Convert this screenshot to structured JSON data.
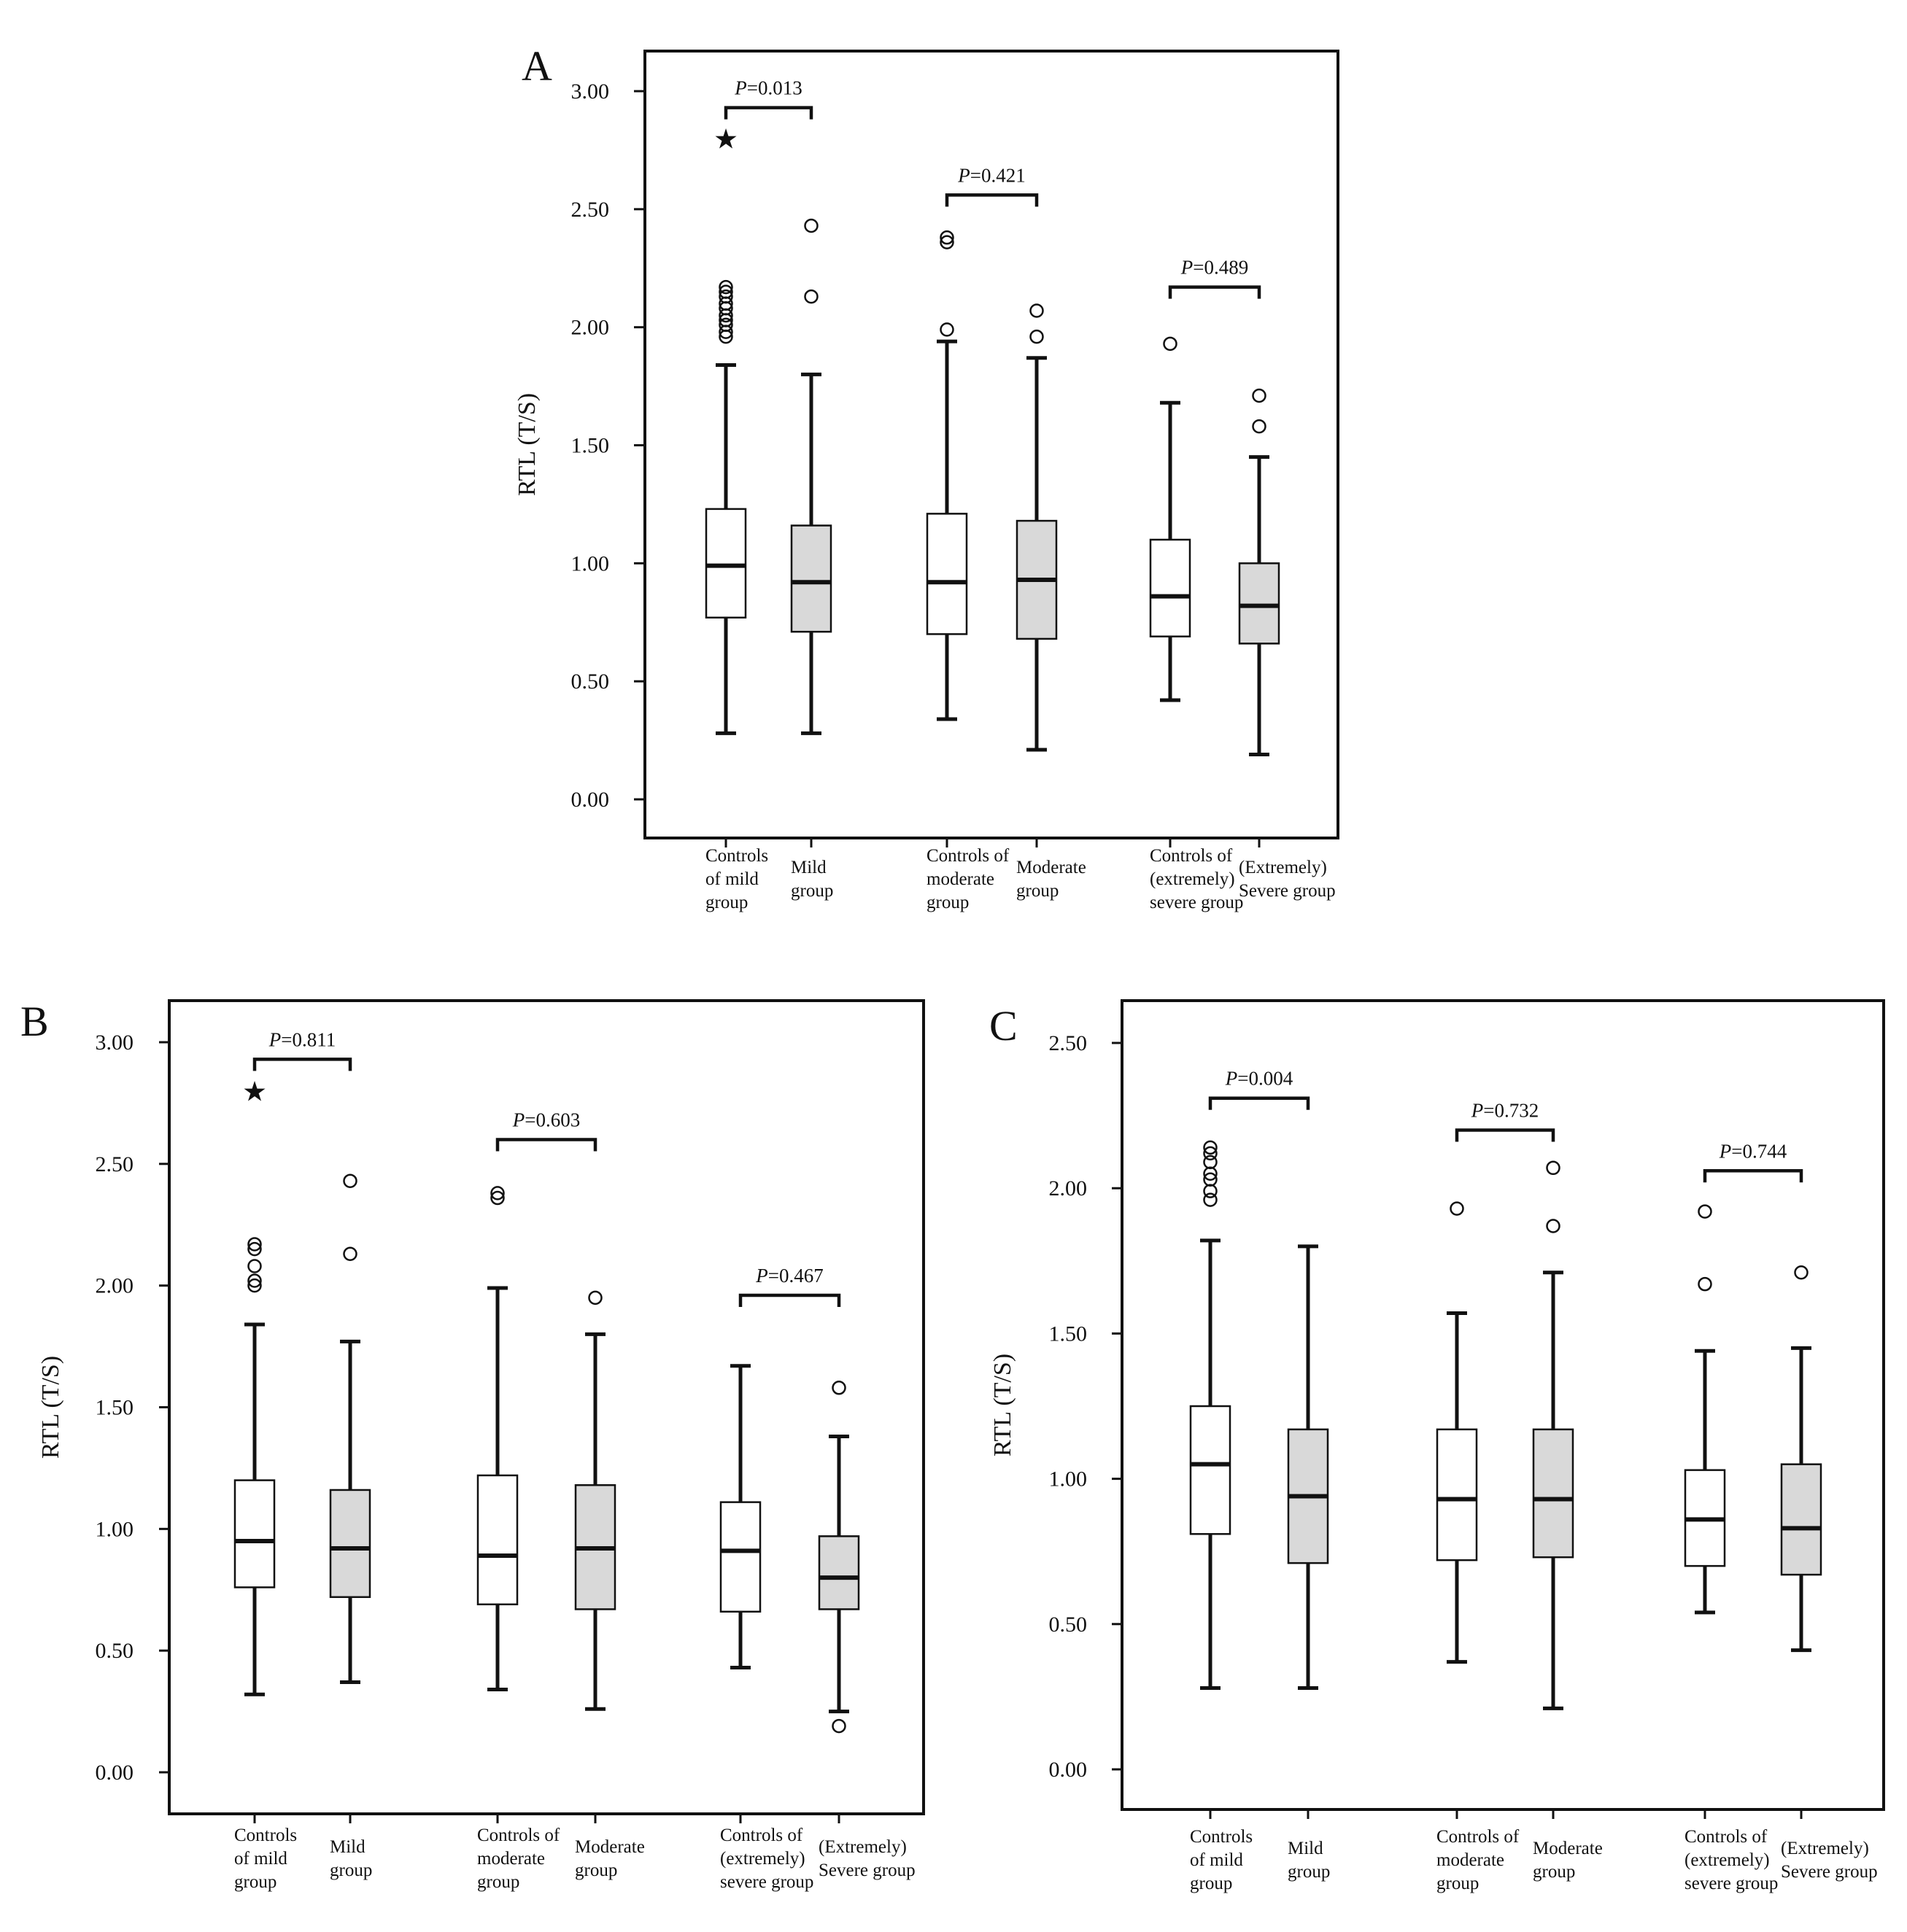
{
  "colors": {
    "control_fill": "#ffffff",
    "case_fill": "#d9d9d9",
    "stroke": "#111111",
    "background": "#ffffff"
  },
  "chart_data": [
    {
      "type": "boxplot",
      "panel": "A",
      "ylabel": "RTL (T/S)",
      "ylim": [
        0,
        3
      ],
      "yticks": [
        "0.00",
        "0.50",
        "1.00",
        "1.50",
        "2.00",
        "2.50",
        "3.00"
      ],
      "grid": false,
      "categories": [
        [
          "Controls",
          "of mild",
          "group"
        ],
        [
          "Mild",
          "group"
        ],
        [
          "Controls of",
          "moderate",
          "group"
        ],
        [
          "Moderate",
          "group"
        ],
        [
          "Controls of",
          "(extremely)",
          "severe group"
        ],
        [
          "(Extremely)",
          "Severe group"
        ]
      ],
      "boxes": [
        {
          "min": 0.28,
          "q1": 0.77,
          "median": 0.99,
          "q3": 1.23,
          "max": 1.84,
          "outliers": [
            1.96,
            1.98,
            2.01,
            2.03,
            2.05,
            2.08,
            2.1,
            2.13,
            2.15,
            2.17
          ],
          "extremes": [
            2.8
          ],
          "group": "control"
        },
        {
          "min": 0.28,
          "q1": 0.71,
          "median": 0.92,
          "q3": 1.16,
          "max": 1.8,
          "outliers": [
            2.13,
            2.43
          ],
          "extremes": [],
          "group": "case"
        },
        {
          "min": 0.34,
          "q1": 0.7,
          "median": 0.92,
          "q3": 1.21,
          "max": 1.94,
          "outliers": [
            1.99,
            2.36,
            2.38
          ],
          "extremes": [],
          "group": "control"
        },
        {
          "min": 0.21,
          "q1": 0.68,
          "median": 0.93,
          "q3": 1.18,
          "max": 1.87,
          "outliers": [
            1.96,
            2.07
          ],
          "extremes": [],
          "group": "case"
        },
        {
          "min": 0.42,
          "q1": 0.69,
          "median": 0.86,
          "q3": 1.1,
          "max": 1.68,
          "outliers": [
            1.93
          ],
          "extremes": [],
          "group": "control"
        },
        {
          "min": 0.19,
          "q1": 0.66,
          "median": 0.82,
          "q3": 1.0,
          "max": 1.45,
          "outliers": [
            1.58,
            1.71
          ],
          "extremes": [],
          "group": "case"
        }
      ],
      "comparisons": [
        {
          "between": [
            0,
            1
          ],
          "label": "P=0.013",
          "at": 2.93
        },
        {
          "between": [
            2,
            3
          ],
          "label": "P=0.421",
          "at": 2.56
        },
        {
          "between": [
            4,
            5
          ],
          "label": "P=0.489",
          "at": 2.17
        }
      ]
    },
    {
      "type": "boxplot",
      "panel": "B",
      "ylabel": "RTL (T/S)",
      "ylim": [
        0,
        3
      ],
      "yticks": [
        "0.00",
        "0.50",
        "1.00",
        "1.50",
        "2.00",
        "2.50",
        "3.00"
      ],
      "grid": false,
      "categories": [
        [
          "Controls",
          "of mild",
          "group"
        ],
        [
          "Mild",
          "group"
        ],
        [
          "Controls of",
          "moderate",
          "group"
        ],
        [
          "Moderate",
          "group"
        ],
        [
          "Controls of",
          "(extremely)",
          "severe group"
        ],
        [
          "(Extremely)",
          "Severe group"
        ]
      ],
      "boxes": [
        {
          "min": 0.32,
          "q1": 0.76,
          "median": 0.95,
          "q3": 1.2,
          "max": 1.84,
          "outliers": [
            2.0,
            2.02,
            2.08,
            2.15,
            2.17
          ],
          "extremes": [
            2.8
          ],
          "group": "control"
        },
        {
          "min": 0.37,
          "q1": 0.72,
          "median": 0.92,
          "q3": 1.16,
          "max": 1.77,
          "outliers": [
            2.13,
            2.43
          ],
          "extremes": [],
          "group": "case"
        },
        {
          "min": 0.34,
          "q1": 0.69,
          "median": 0.89,
          "q3": 1.22,
          "max": 1.99,
          "outliers": [
            2.36,
            2.38
          ],
          "extremes": [],
          "group": "control"
        },
        {
          "min": 0.26,
          "q1": 0.67,
          "median": 0.92,
          "q3": 1.18,
          "max": 1.8,
          "outliers": [
            1.95
          ],
          "extremes": [],
          "group": "case"
        },
        {
          "min": 0.43,
          "q1": 0.66,
          "median": 0.91,
          "q3": 1.11,
          "max": 1.67,
          "outliers": [],
          "extremes": [],
          "group": "control"
        },
        {
          "min": 0.25,
          "q1": 0.67,
          "median": 0.8,
          "q3": 0.97,
          "max": 1.38,
          "outliers": [
            0.19,
            1.58
          ],
          "extremes": [],
          "group": "case"
        }
      ],
      "comparisons": [
        {
          "between": [
            0,
            1
          ],
          "label": "P=0.811",
          "at": 2.93
        },
        {
          "between": [
            2,
            3
          ],
          "label": "P=0.603",
          "at": 2.6
        },
        {
          "between": [
            4,
            5
          ],
          "label": "P=0.467",
          "at": 1.96
        }
      ]
    },
    {
      "type": "boxplot",
      "panel": "C",
      "ylabel": "RTL (T/S)",
      "ylim": [
        0,
        2.5
      ],
      "yticks": [
        "0.00",
        "0.50",
        "1.00",
        "1.50",
        "2.00",
        "2.50"
      ],
      "grid": false,
      "categories": [
        [
          "Controls",
          "of mild",
          "group"
        ],
        [
          "Mild",
          "group"
        ],
        [
          "Controls of",
          "moderate",
          "group"
        ],
        [
          "Moderate",
          "group"
        ],
        [
          "Controls of",
          "(extremely)",
          "severe group"
        ],
        [
          "(Extremely)",
          "Severe group"
        ]
      ],
      "boxes": [
        {
          "min": 0.28,
          "q1": 0.81,
          "median": 1.05,
          "q3": 1.25,
          "max": 1.82,
          "outliers": [
            1.96,
            1.99,
            2.03,
            2.05,
            2.09,
            2.12,
            2.14
          ],
          "extremes": [],
          "group": "control"
        },
        {
          "min": 0.28,
          "q1": 0.71,
          "median": 0.94,
          "q3": 1.17,
          "max": 1.8,
          "outliers": [],
          "extremes": [],
          "group": "case"
        },
        {
          "min": 0.37,
          "q1": 0.72,
          "median": 0.93,
          "q3": 1.17,
          "max": 1.57,
          "outliers": [
            1.93
          ],
          "extremes": [],
          "group": "control"
        },
        {
          "min": 0.21,
          "q1": 0.73,
          "median": 0.93,
          "q3": 1.17,
          "max": 1.71,
          "outliers": [
            1.87,
            2.07
          ],
          "extremes": [],
          "group": "case"
        },
        {
          "min": 0.54,
          "q1": 0.7,
          "median": 0.86,
          "q3": 1.03,
          "max": 1.44,
          "outliers": [
            1.67,
            1.92
          ],
          "extremes": [],
          "group": "control"
        },
        {
          "min": 0.41,
          "q1": 0.67,
          "median": 0.83,
          "q3": 1.05,
          "max": 1.45,
          "outliers": [
            1.71
          ],
          "extremes": [],
          "group": "case"
        }
      ],
      "comparisons": [
        {
          "between": [
            0,
            1
          ],
          "label": "P=0.004",
          "at": 2.31
        },
        {
          "between": [
            2,
            3
          ],
          "label": "P=0.732",
          "at": 2.2
        },
        {
          "between": [
            4,
            5
          ],
          "label": "P=0.744",
          "at": 2.06
        }
      ]
    }
  ]
}
